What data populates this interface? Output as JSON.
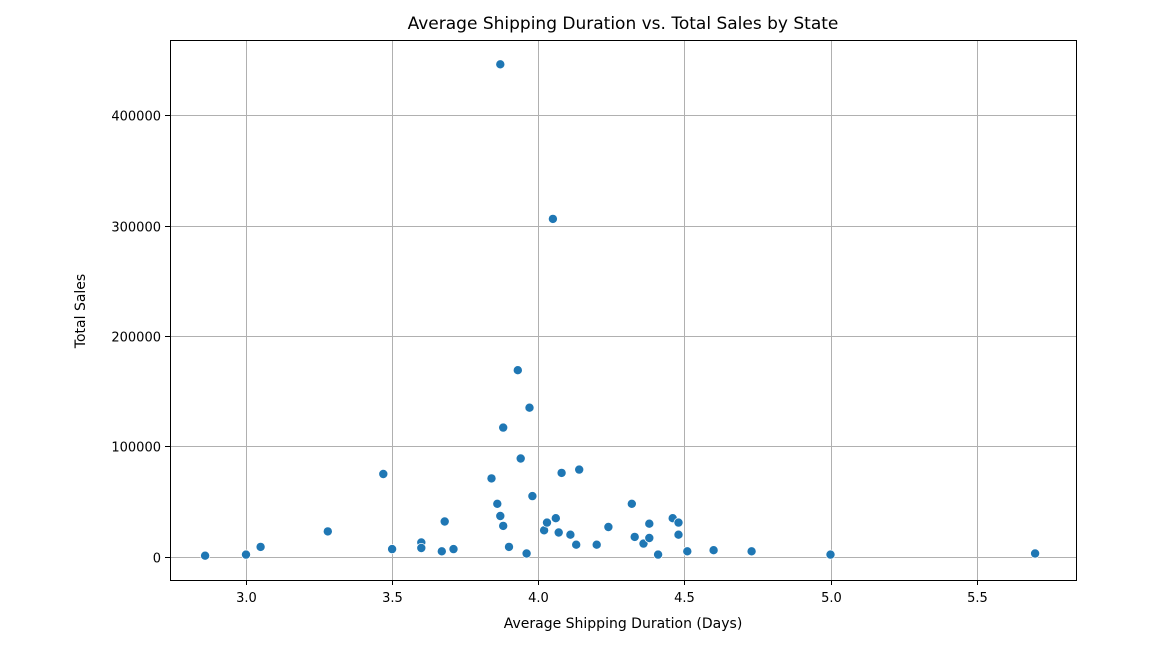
{
  "chart_data": {
    "type": "scatter",
    "title": "Average Shipping Duration vs. Total Sales by State",
    "xlabel": "Average Shipping Duration (Days)",
    "ylabel": "Total Sales",
    "xlim": [
      2.74,
      5.84
    ],
    "ylim": [
      -21000,
      468000
    ],
    "xticks": [
      3.0,
      3.5,
      4.0,
      4.5,
      5.0,
      5.5
    ],
    "xtick_labels": [
      "3.0",
      "3.5",
      "4.0",
      "4.5",
      "5.0",
      "5.5"
    ],
    "yticks": [
      0,
      100000,
      200000,
      300000,
      400000
    ],
    "ytick_labels": [
      "0",
      "100000",
      "200000",
      "300000",
      "400000"
    ],
    "grid": true,
    "color": "#1f77b4",
    "x": [
      2.86,
      3.0,
      3.05,
      3.28,
      3.47,
      3.5,
      3.6,
      3.6,
      3.67,
      3.68,
      3.71,
      3.84,
      3.86,
      3.87,
      3.87,
      3.88,
      3.88,
      3.9,
      3.93,
      3.94,
      3.96,
      3.97,
      3.98,
      4.02,
      4.03,
      4.06,
      4.07,
      4.08,
      4.05,
      4.11,
      4.13,
      4.14,
      4.2,
      4.24,
      4.32,
      4.33,
      4.36,
      4.38,
      4.38,
      4.41,
      4.46,
      4.48,
      4.48,
      4.51,
      4.6,
      4.73,
      5.0,
      5.7
    ],
    "y": [
      1000,
      2000,
      9000,
      23000,
      75000,
      7000,
      13000,
      8000,
      5000,
      32000,
      7000,
      71000,
      48000,
      37000,
      446000,
      117000,
      28000,
      9000,
      169000,
      89000,
      3000,
      135000,
      55000,
      24000,
      31000,
      35000,
      22000,
      76000,
      306000,
      20000,
      11000,
      79000,
      11000,
      27000,
      48000,
      18000,
      12000,
      30000,
      17000,
      2000,
      35000,
      20000,
      31000,
      5000,
      6000,
      5000,
      2000,
      3000
    ]
  }
}
